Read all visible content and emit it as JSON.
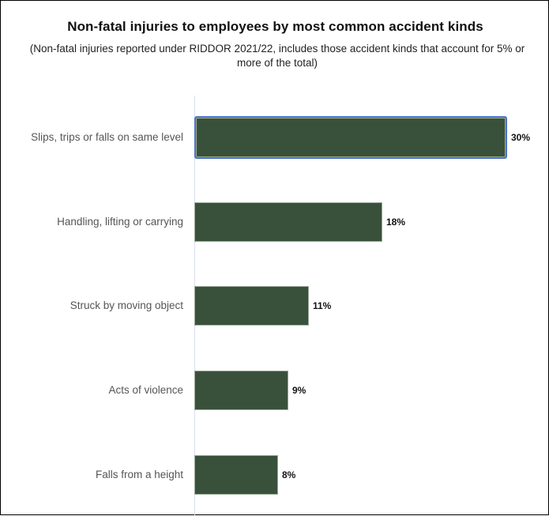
{
  "chart_data": {
    "type": "bar",
    "orientation": "horizontal",
    "title": "Non-fatal injuries to employees by most common accident kinds",
    "subtitle": "(Non-fatal injuries reported under RIDDOR 2021/22, includes those accident kinds that account for 5% or more of the total)",
    "xlabel": "",
    "ylabel": "",
    "categories": [
      "Slips, trips or falls on same level",
      "Handling, lifting or carrying",
      "Struck by moving object",
      "Acts of violence",
      "Falls from a height"
    ],
    "values": [
      30,
      18,
      11,
      9,
      8
    ],
    "value_labels": [
      "30%",
      "18%",
      "11%",
      "9%",
      "8%"
    ],
    "unit": "%",
    "xlim": [
      0,
      30
    ],
    "grid": false,
    "legend": null,
    "bar_color": "#39513a",
    "selected_index": 0,
    "selection_color": "#4a72c8"
  },
  "bars": [
    {
      "label": "Slips, trips or falls on same level",
      "value": "30%"
    },
    {
      "label": "Handling, lifting or carrying",
      "value": "18%"
    },
    {
      "label": "Struck by moving object",
      "value": "11%"
    },
    {
      "label": "Acts of violence",
      "value": "9%"
    },
    {
      "label": "Falls from a height",
      "value": "8%"
    }
  ]
}
